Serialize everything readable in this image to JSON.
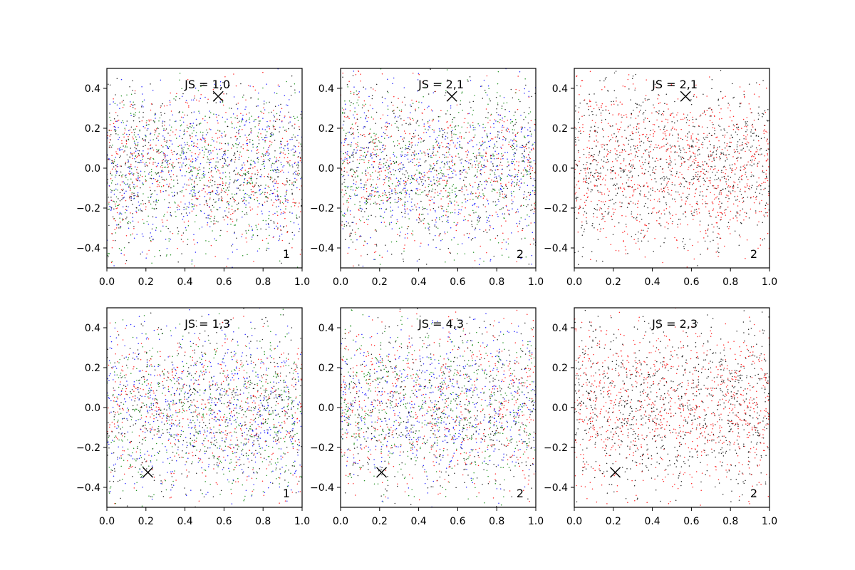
{
  "chart_data": [
    {
      "type": "scatter",
      "title": "JS = 1,0",
      "corner_label": "1",
      "xlim": [
        0.0,
        1.0
      ],
      "ylim": [
        -0.5,
        0.5
      ],
      "xticks": [
        "0.0",
        "0.2",
        "0.4",
        "0.6",
        "0.8",
        "1.0"
      ],
      "yticks": [
        "-0.4",
        "-0.2",
        "0.0",
        "0.2",
        "0.4"
      ],
      "marker": {
        "x": 0.57,
        "y": 0.36,
        "symbol": "x",
        "color": "#000000"
      },
      "point_colors": [
        "#0000ff",
        "#ff0000",
        "#008000",
        "#000000"
      ],
      "points_per_panel": 2200,
      "seed": 11
    },
    {
      "type": "scatter",
      "title": "JS = 2,1",
      "corner_label": "2",
      "xlim": [
        0.0,
        1.0
      ],
      "ylim": [
        -0.5,
        0.5
      ],
      "xticks": [
        "0.0",
        "0.2",
        "0.4",
        "0.6",
        "0.8",
        "1.0"
      ],
      "yticks": [
        "-0.4",
        "-0.2",
        "0.0",
        "0.2",
        "0.4"
      ],
      "marker": {
        "x": 0.57,
        "y": 0.36,
        "symbol": "x",
        "color": "#000000"
      },
      "point_colors": [
        "#0000ff",
        "#ff0000",
        "#008000",
        "#000000"
      ],
      "points_per_panel": 2200,
      "seed": 23
    },
    {
      "type": "scatter",
      "title": "JS = 2,1",
      "corner_label": "2",
      "xlim": [
        0.0,
        1.0
      ],
      "ylim": [
        -0.5,
        0.5
      ],
      "xticks": [
        "0.0",
        "0.2",
        "0.4",
        "0.6",
        "0.8",
        "1.0"
      ],
      "yticks": [
        "-0.4",
        "-0.2",
        "0.0",
        "0.2",
        "0.4"
      ],
      "marker": {
        "x": 0.57,
        "y": 0.36,
        "symbol": "x",
        "color": "#000000"
      },
      "point_colors": [
        "#ff0000",
        "#000000"
      ],
      "points_per_panel": 1800,
      "seed": 37
    },
    {
      "type": "scatter",
      "title": "JS = 1,3",
      "corner_label": "1",
      "xlim": [
        0.0,
        1.0
      ],
      "ylim": [
        -0.5,
        0.5
      ],
      "xticks": [
        "0.0",
        "0.2",
        "0.4",
        "0.6",
        "0.8",
        "1.0"
      ],
      "yticks": [
        "-0.4",
        "-0.2",
        "0.0",
        "0.2",
        "0.4"
      ],
      "marker": {
        "x": 0.21,
        "y": -0.325,
        "symbol": "x",
        "color": "#000000"
      },
      "point_colors": [
        "#0000ff",
        "#ff0000",
        "#008000",
        "#000000"
      ],
      "points_per_panel": 2200,
      "seed": 41
    },
    {
      "type": "scatter",
      "title": "JS = 4,3",
      "corner_label": "2",
      "xlim": [
        0.0,
        1.0
      ],
      "ylim": [
        -0.5,
        0.5
      ],
      "xticks": [
        "0.0",
        "0.2",
        "0.4",
        "0.6",
        "0.8",
        "1.0"
      ],
      "yticks": [
        "-0.4",
        "-0.2",
        "0.0",
        "0.2",
        "0.4"
      ],
      "marker": {
        "x": 0.21,
        "y": -0.325,
        "symbol": "x",
        "color": "#000000"
      },
      "point_colors": [
        "#0000ff",
        "#ff0000",
        "#008000",
        "#000000"
      ],
      "points_per_panel": 2200,
      "seed": 53
    },
    {
      "type": "scatter",
      "title": "JS = 2,3",
      "corner_label": "2",
      "xlim": [
        0.0,
        1.0
      ],
      "ylim": [
        -0.5,
        0.5
      ],
      "xticks": [
        "0.0",
        "0.2",
        "0.4",
        "0.6",
        "0.8",
        "1.0"
      ],
      "yticks": [
        "-0.4",
        "-0.2",
        "0.0",
        "0.2",
        "0.4"
      ],
      "marker": {
        "x": 0.21,
        "y": -0.325,
        "symbol": "x",
        "color": "#000000"
      },
      "point_colors": [
        "#ff0000",
        "#000000"
      ],
      "points_per_panel": 1800,
      "seed": 67
    }
  ]
}
